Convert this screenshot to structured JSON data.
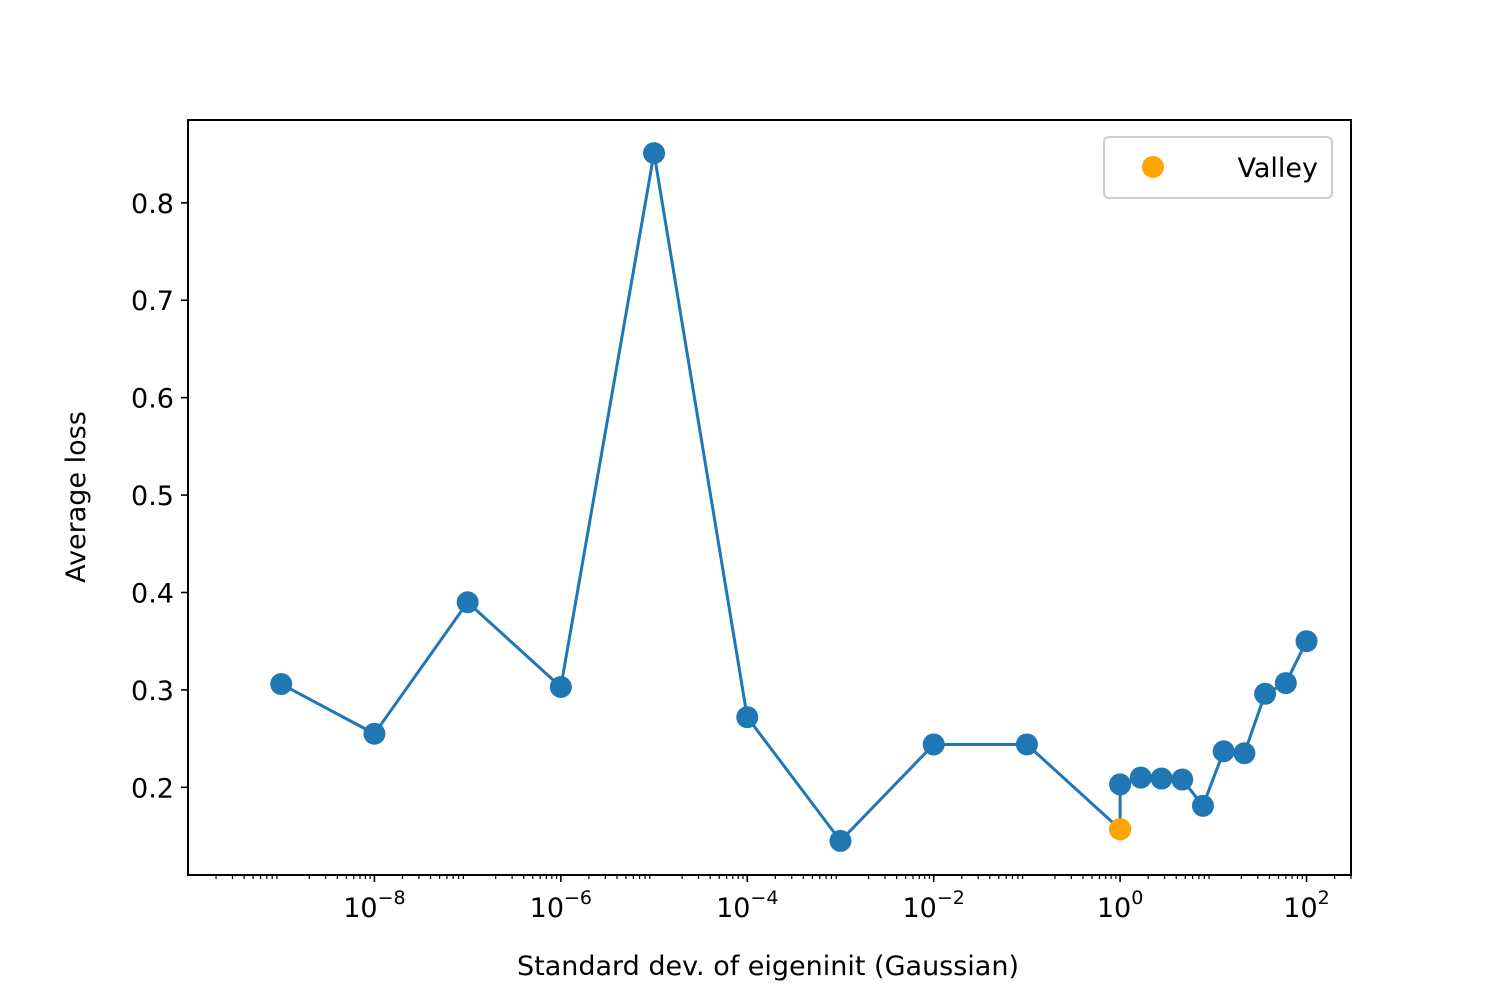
{
  "chart_data": {
    "type": "line",
    "x_scale": "log",
    "xlabel": "Standard dev. of eigeninit (Gaussian)",
    "ylabel": "Average loss",
    "xlim": [
      1e-10,
      300.0
    ],
    "ylim": [
      0.11,
      0.885
    ],
    "x_ticks": [
      {
        "value": 1e-08,
        "base": "10",
        "exp": "−8"
      },
      {
        "value": 1e-06,
        "base": "10",
        "exp": "−6"
      },
      {
        "value": 0.0001,
        "base": "10",
        "exp": "−4"
      },
      {
        "value": 0.01,
        "base": "10",
        "exp": "−2"
      },
      {
        "value": 1,
        "base": "10",
        "exp": "0"
      },
      {
        "value": 100,
        "base": "10",
        "exp": "2"
      }
    ],
    "y_ticks": [
      {
        "value": 0.2,
        "label": "0.2"
      },
      {
        "value": 0.3,
        "label": "0.3"
      },
      {
        "value": 0.4,
        "label": "0.4"
      },
      {
        "value": 0.5,
        "label": "0.5"
      },
      {
        "value": 0.6,
        "label": "0.6"
      },
      {
        "value": 0.7,
        "label": "0.7"
      },
      {
        "value": 0.8,
        "label": "0.8"
      }
    ],
    "grid": false,
    "series": [
      {
        "color": "#1f77b4",
        "marker": "circle",
        "x": [
          1e-09,
          1e-08,
          1e-07,
          1e-06,
          1e-05,
          0.0001,
          0.001,
          0.01,
          0.1,
          1,
          1,
          1.668,
          2.783,
          4.642,
          7.743,
          12.915,
          21.544,
          35.938,
          59.948,
          100
        ],
        "y": [
          0.306,
          0.255,
          0.39,
          0.303,
          0.851,
          0.272,
          0.145,
          0.244,
          0.244,
          0.157,
          0.203,
          0.21,
          0.209,
          0.208,
          0.181,
          0.237,
          0.235,
          0.296,
          0.307,
          0.35
        ]
      }
    ],
    "highlight": {
      "name": "Valley",
      "x": 1,
      "y": 0.157,
      "color": "#ffa500",
      "marker": "circle"
    },
    "legend": {
      "position": "top-right",
      "entries": [
        {
          "label": "Valley",
          "color": "#ffa500",
          "marker": "circle"
        }
      ]
    }
  }
}
